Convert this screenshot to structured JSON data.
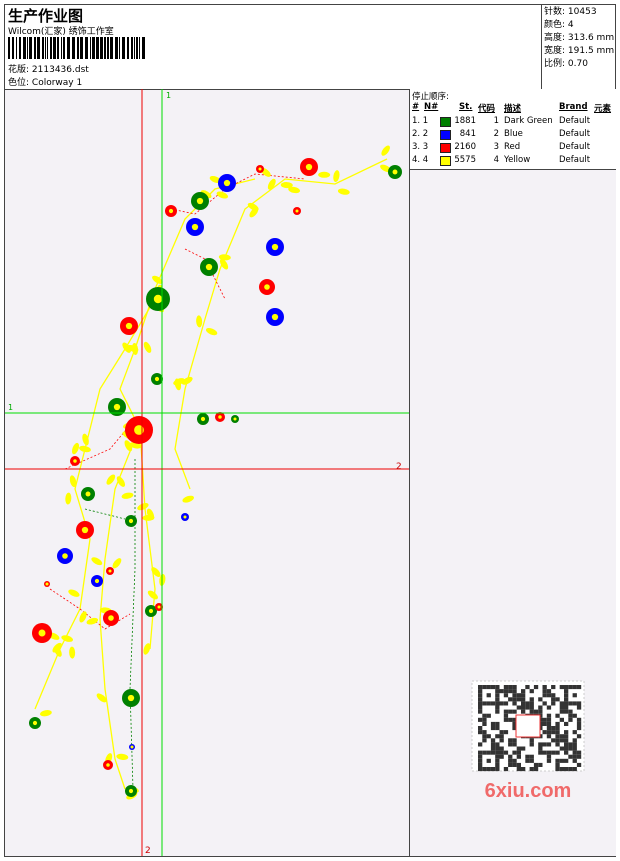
{
  "header": {
    "title": "生产作业图",
    "studio": "Wilcom(汇家) 绣饰工作室",
    "design_label": "花版:",
    "design_file": "2113436.dst",
    "colorway_label": "色位:",
    "colorway": "Colorway 1"
  },
  "info": [
    {
      "label": "针数:",
      "value": "10453"
    },
    {
      "label": "颜色:",
      "value": "4"
    },
    {
      "label": "高度:",
      "value": "313.6 mm"
    },
    {
      "label": "宽度:",
      "value": "191.5 mm"
    },
    {
      "label": "比例:",
      "value": "0.70"
    }
  ],
  "stop_sequence": {
    "title": "停止顺序:",
    "headers": [
      "#",
      "N#",
      "St.",
      "代码",
      "描述",
      "Brand",
      "元素"
    ],
    "rows": [
      {
        "index": "1. 1",
        "color": "#008000",
        "stitches": 1881,
        "code": 1,
        "description": "Dark Green",
        "brand": "Default"
      },
      {
        "index": "2. 2",
        "color": "#0000ff",
        "stitches": 841,
        "code": 2,
        "description": "Blue",
        "brand": "Default"
      },
      {
        "index": "3. 3",
        "color": "#ff0000",
        "stitches": 2160,
        "code": 3,
        "description": "Red",
        "brand": "Default"
      },
      {
        "index": "4. 4",
        "color": "#ffff00",
        "stitches": 5575,
        "code": 4,
        "description": "Yellow",
        "brand": "Default"
      }
    ]
  },
  "guides": {
    "vertical_green": "1",
    "horizontal_green": "1",
    "horizontal_red": "2",
    "vertical_red": "2"
  },
  "watermark": "6xiu.com"
}
